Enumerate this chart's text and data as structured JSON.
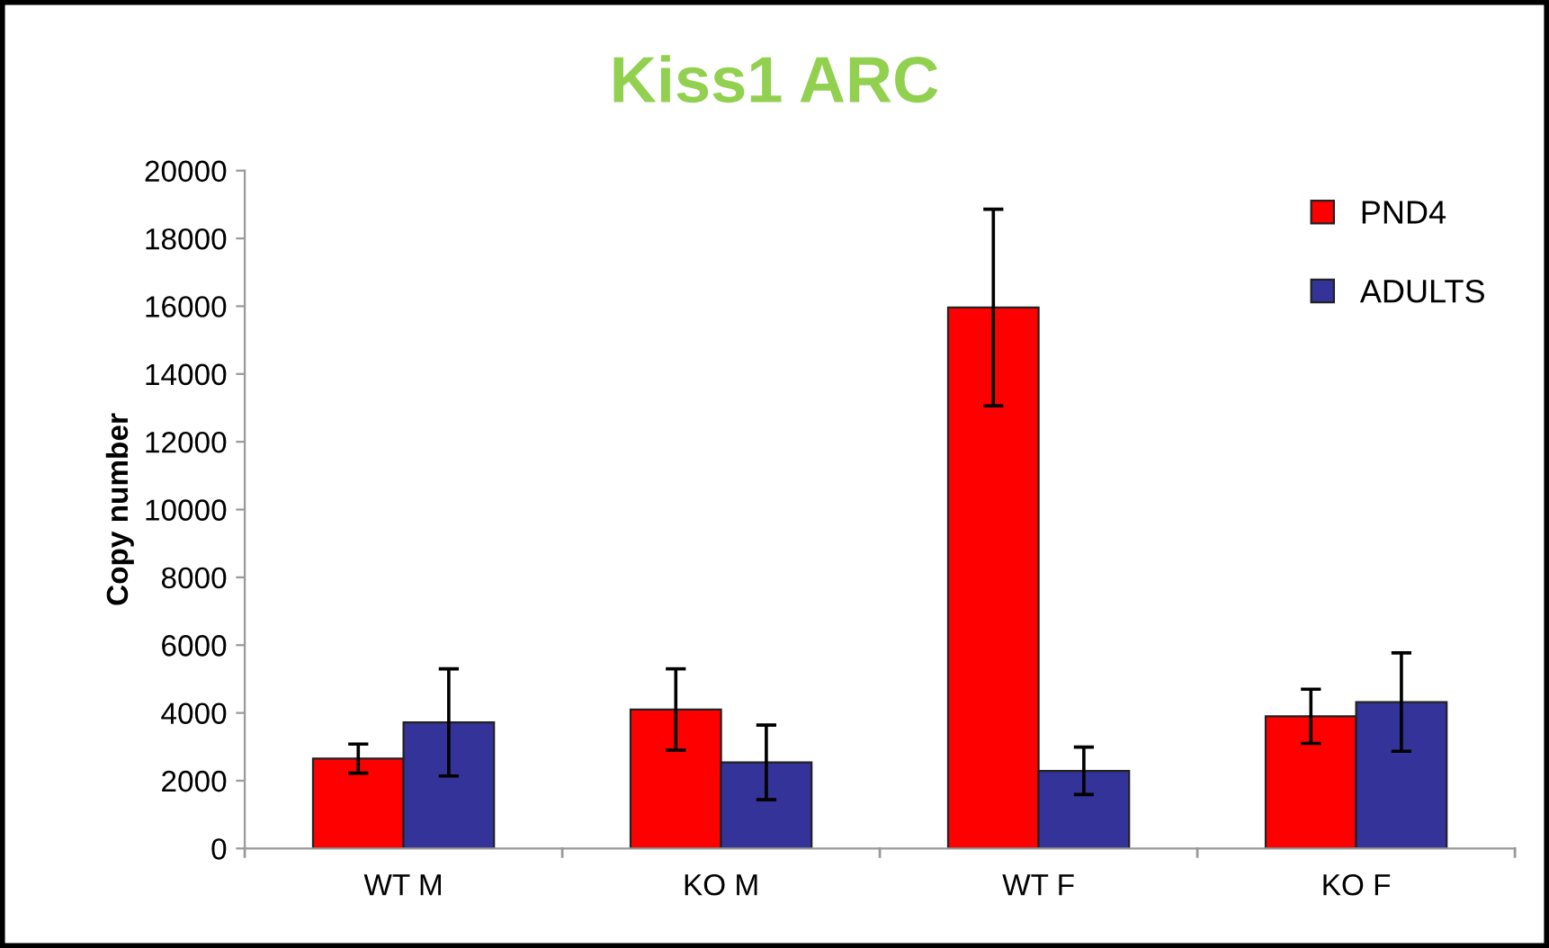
{
  "chart_data": {
    "type": "bar",
    "title": "Kiss1 ARC",
    "ylabel": "Copy number",
    "categories": [
      "WT M",
      "KO M",
      "WT F",
      "KO F"
    ],
    "series": [
      {
        "name": "PND4",
        "color": "#ff0000",
        "values": [
          2650,
          4100,
          15960,
          3900
        ],
        "errors": [
          430,
          1200,
          2900,
          800
        ]
      },
      {
        "name": "ADULTS",
        "color": "#333399",
        "values": [
          3720,
          2540,
          2290,
          4320
        ],
        "errors": [
          1580,
          1100,
          700,
          1450
        ]
      }
    ],
    "ylim": [
      0,
      20000
    ],
    "yticks": [
      0,
      2000,
      4000,
      6000,
      8000,
      10000,
      12000,
      14000,
      16000,
      18000,
      20000
    ],
    "legend": "top right",
    "grid": false
  }
}
